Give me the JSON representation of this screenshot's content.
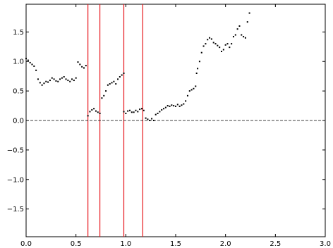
{
  "chart_data": {
    "type": "scatter",
    "title": "",
    "xlabel": "",
    "ylabel": "",
    "xlim": [
      0.0,
      3.0
    ],
    "ylim": [
      -1.97,
      1.97
    ],
    "xticks": [
      0.0,
      0.5,
      1.0,
      1.5,
      2.0,
      2.5,
      3.0
    ],
    "xtick_labels": [
      "0.0",
      "0.5",
      "1.0",
      "1.5",
      "2.0",
      "2.5",
      "3.0"
    ],
    "yticks": [
      -1.5,
      -1.0,
      -0.5,
      0.0,
      0.5,
      1.0,
      1.5
    ],
    "ytick_labels": [
      "−1.5",
      "−1.0",
      "−0.5",
      "0.0",
      "0.5",
      "1.0",
      "1.5"
    ],
    "grid": false,
    "reference_line": {
      "y": 0.0,
      "style": "dashed",
      "color": "#000000"
    },
    "vertical_lines": {
      "x": [
        0.62,
        0.74,
        0.98,
        1.17
      ],
      "color": "#e8191e"
    },
    "series": [
      {
        "color": "#000000",
        "x": [
          0.0,
          0.02,
          0.04,
          0.06,
          0.08,
          0.1,
          0.12,
          0.14,
          0.16,
          0.18,
          0.2,
          0.22,
          0.24,
          0.26,
          0.28,
          0.3,
          0.32,
          0.34,
          0.36,
          0.38,
          0.4,
          0.42,
          0.44,
          0.46,
          0.48,
          0.5,
          0.52,
          0.54,
          0.56,
          0.58,
          0.6,
          0.62,
          0.64,
          0.66,
          0.68,
          0.7,
          0.72,
          0.74,
          0.76,
          0.78,
          0.8,
          0.82,
          0.84,
          0.86,
          0.88,
          0.9,
          0.92,
          0.94,
          0.96,
          0.98,
          0.98,
          1.0,
          1.02,
          1.04,
          1.06,
          1.08,
          1.1,
          1.12,
          1.14,
          1.16,
          1.18,
          1.2,
          1.22,
          1.24,
          1.26,
          1.28,
          1.3,
          1.32,
          1.34,
          1.36,
          1.38,
          1.4,
          1.42,
          1.44,
          1.46,
          1.48,
          1.5,
          1.52,
          1.54,
          1.56,
          1.58,
          1.6,
          1.62,
          1.64,
          1.66,
          1.68,
          1.7,
          1.71,
          1.72,
          1.74,
          1.76,
          1.78,
          1.8,
          1.82,
          1.84,
          1.86,
          1.88,
          1.9,
          1.92,
          1.94,
          1.96,
          1.98,
          2.0,
          2.02,
          2.04,
          2.06,
          2.08,
          2.1,
          2.12,
          2.14,
          2.16,
          2.18,
          2.2,
          2.22,
          2.24
        ],
        "y": [
          1.05,
          1.02,
          0.98,
          0.95,
          0.92,
          0.85,
          0.7,
          0.64,
          0.6,
          0.63,
          0.66,
          0.65,
          0.68,
          0.72,
          0.7,
          0.67,
          0.66,
          0.7,
          0.72,
          0.74,
          0.7,
          0.68,
          0.66,
          0.7,
          0.68,
          0.72,
          0.99,
          0.95,
          0.91,
          0.89,
          0.93,
          0.08,
          0.15,
          0.18,
          0.2,
          0.16,
          0.14,
          0.12,
          0.38,
          0.42,
          0.5,
          0.6,
          0.62,
          0.64,
          0.66,
          0.62,
          0.7,
          0.74,
          0.77,
          0.8,
          0.15,
          0.12,
          0.16,
          0.17,
          0.14,
          0.14,
          0.17,
          0.15,
          0.19,
          0.2,
          0.17,
          0.04,
          0.02,
          0.0,
          0.03,
          0.0,
          0.1,
          0.12,
          0.15,
          0.18,
          0.2,
          0.22,
          0.25,
          0.24,
          0.26,
          0.25,
          0.24,
          0.27,
          0.24,
          0.26,
          0.28,
          0.33,
          0.42,
          0.5,
          0.52,
          0.54,
          0.58,
          0.8,
          0.88,
          1.0,
          1.15,
          1.26,
          1.3,
          1.37,
          1.4,
          1.38,
          1.32,
          1.3,
          1.27,
          1.24,
          1.17,
          1.2,
          1.28,
          1.3,
          1.24,
          1.3,
          1.42,
          1.45,
          1.55,
          1.6,
          1.45,
          1.42,
          1.4,
          1.67,
          1.82
        ]
      }
    ]
  }
}
